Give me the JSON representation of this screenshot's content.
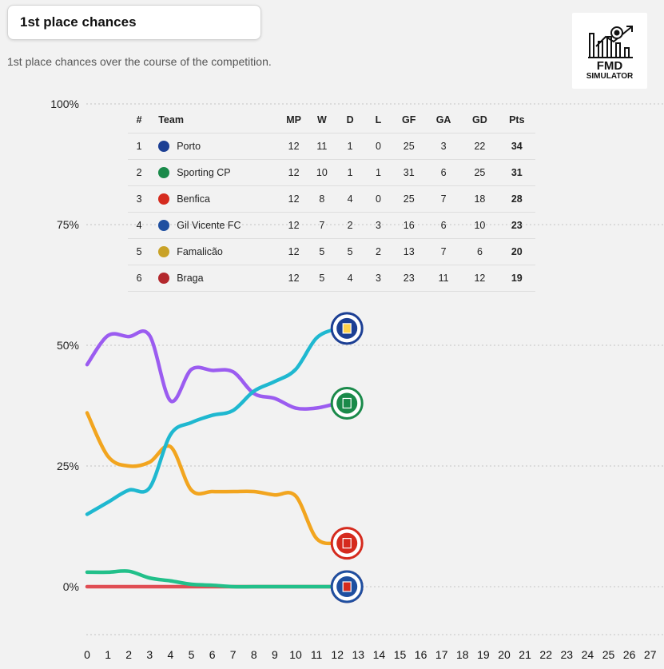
{
  "header": {
    "title": "1st place chances",
    "subtitle": "1st place chances over the course of the competition."
  },
  "logo": {
    "line1": "FMD",
    "line2": "SIMULATOR"
  },
  "table": {
    "columns": [
      "#",
      "Team",
      "MP",
      "W",
      "D",
      "L",
      "GF",
      "GA",
      "GD",
      "Pts"
    ],
    "rows": [
      {
        "pos": "1",
        "team": "Porto",
        "mp": "12",
        "w": "11",
        "d": "1",
        "l": "0",
        "gf": "25",
        "ga": "3",
        "gd": "22",
        "pts": "34",
        "color": "#1c3f94"
      },
      {
        "pos": "2",
        "team": "Sporting CP",
        "mp": "12",
        "w": "10",
        "d": "1",
        "l": "1",
        "gf": "31",
        "ga": "6",
        "gd": "25",
        "pts": "31",
        "color": "#1a8a4a"
      },
      {
        "pos": "3",
        "team": "Benfica",
        "mp": "12",
        "w": "8",
        "d": "4",
        "l": "0",
        "gf": "25",
        "ga": "7",
        "gd": "18",
        "pts": "28",
        "color": "#d52b1e"
      },
      {
        "pos": "4",
        "team": "Gil Vicente FC",
        "mp": "12",
        "w": "7",
        "d": "2",
        "l": "3",
        "gf": "16",
        "ga": "6",
        "gd": "10",
        "pts": "23",
        "color": "#1f4fa0"
      },
      {
        "pos": "5",
        "team": "Famalicão",
        "mp": "12",
        "w": "5",
        "d": "5",
        "l": "2",
        "gf": "13",
        "ga": "7",
        "gd": "6",
        "pts": "20",
        "color": "#c9a227"
      },
      {
        "pos": "6",
        "team": "Braga",
        "mp": "12",
        "w": "5",
        "d": "4",
        "l": "3",
        "gf": "23",
        "ga": "11",
        "gd": "12",
        "pts": "19",
        "color": "#b3282d"
      }
    ]
  },
  "chart_data": {
    "type": "line",
    "title": "1st place chances",
    "ylim": [
      -10,
      100
    ],
    "y_ticks": [
      0,
      25,
      50,
      75,
      100
    ],
    "y_tick_labels": [
      "0%",
      "25%",
      "50%",
      "75%",
      "100%"
    ],
    "x_ticks": [
      0,
      1,
      2,
      3,
      4,
      5,
      6,
      7,
      8,
      9,
      10,
      11,
      12,
      13,
      14,
      15,
      16,
      17,
      18,
      19,
      20,
      21,
      22,
      23,
      24,
      25,
      26,
      27
    ],
    "grid": true,
    "series": [
      {
        "team": "Porto",
        "color": "#1fb8d0",
        "x": [
          0,
          1,
          2,
          3,
          4,
          5,
          6,
          7,
          8,
          9,
          10,
          11,
          12
        ],
        "values": [
          15,
          17.5,
          20,
          20.5,
          31.5,
          34,
          35.5,
          36.5,
          40.5,
          42.5,
          45,
          51.5,
          53.5
        ]
      },
      {
        "team": "Sporting CP",
        "color": "#9b5cf0",
        "x": [
          0,
          1,
          2,
          3,
          4,
          5,
          6,
          7,
          8,
          9,
          10,
          11,
          12
        ],
        "values": [
          46,
          52,
          51.8,
          52,
          38.5,
          45,
          44.8,
          44.5,
          40,
          39,
          37,
          37,
          38
        ]
      },
      {
        "team": "Benfica",
        "color": "#f2a51f",
        "x": [
          0,
          1,
          2,
          3,
          4,
          5,
          6,
          7,
          8,
          9,
          10,
          11,
          12
        ],
        "values": [
          36,
          27,
          25,
          25.8,
          29,
          20,
          19.7,
          19.7,
          19.7,
          19,
          18.8,
          10,
          9
        ]
      },
      {
        "team": "Gil Vicente FC",
        "color": "#22c08a",
        "x": [
          0,
          1,
          2,
          3,
          4,
          5,
          6,
          7,
          8,
          9,
          10,
          11,
          12
        ],
        "values": [
          3,
          3,
          3.2,
          1.8,
          1.2,
          0.5,
          0.3,
          0,
          0,
          0,
          0,
          0,
          0
        ]
      },
      {
        "team": "Braga",
        "color": "#e04e54",
        "x": [
          0,
          1,
          2,
          3,
          4,
          5,
          6,
          7,
          8,
          9,
          10,
          11,
          12
        ],
        "values": [
          0,
          0,
          0,
          0,
          0,
          0,
          0,
          0,
          0,
          0,
          0,
          0,
          0
        ]
      }
    ]
  }
}
